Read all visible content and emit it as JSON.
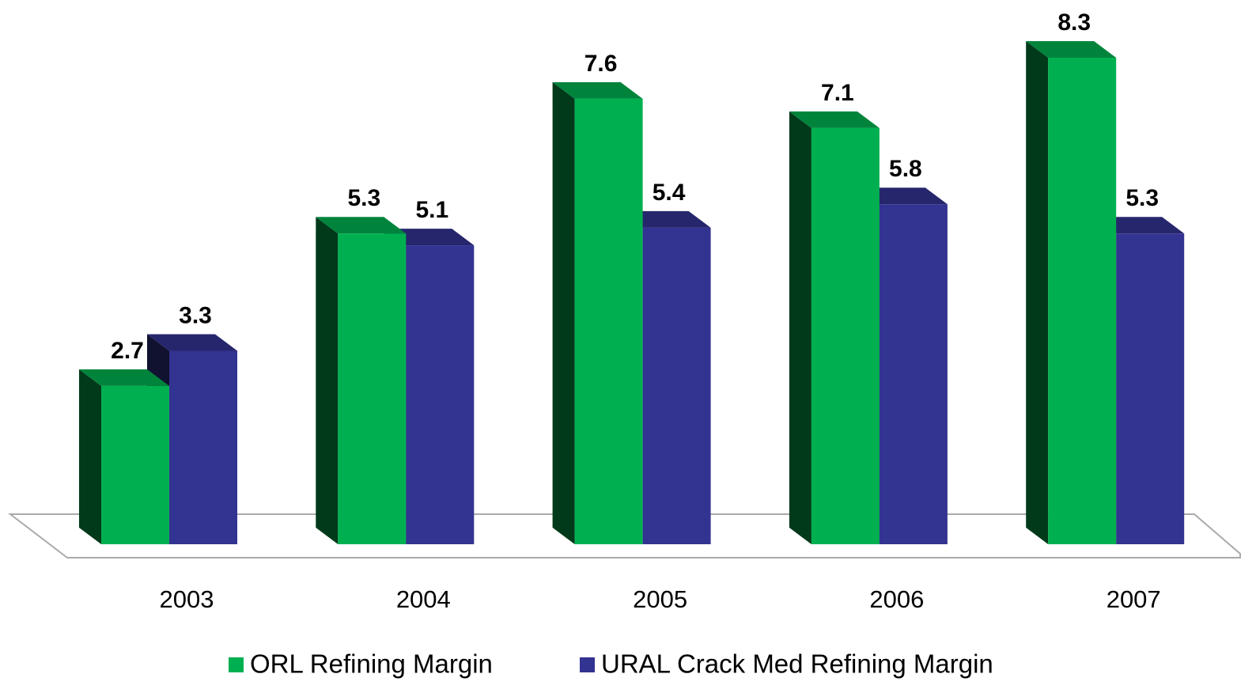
{
  "chart_data": {
    "type": "bar",
    "categories": [
      "2003",
      "2004",
      "2005",
      "2006",
      "2007"
    ],
    "series": [
      {
        "name": "ORL Refining Margin",
        "color": "#00b050",
        "values": [
          2.7,
          5.3,
          7.6,
          7.1,
          8.3
        ]
      },
      {
        "name": "URAL Crack Med Refining Margin",
        "color": "#333391",
        "values": [
          3.3,
          5.1,
          5.4,
          5.8,
          5.3
        ]
      }
    ]
  }
}
